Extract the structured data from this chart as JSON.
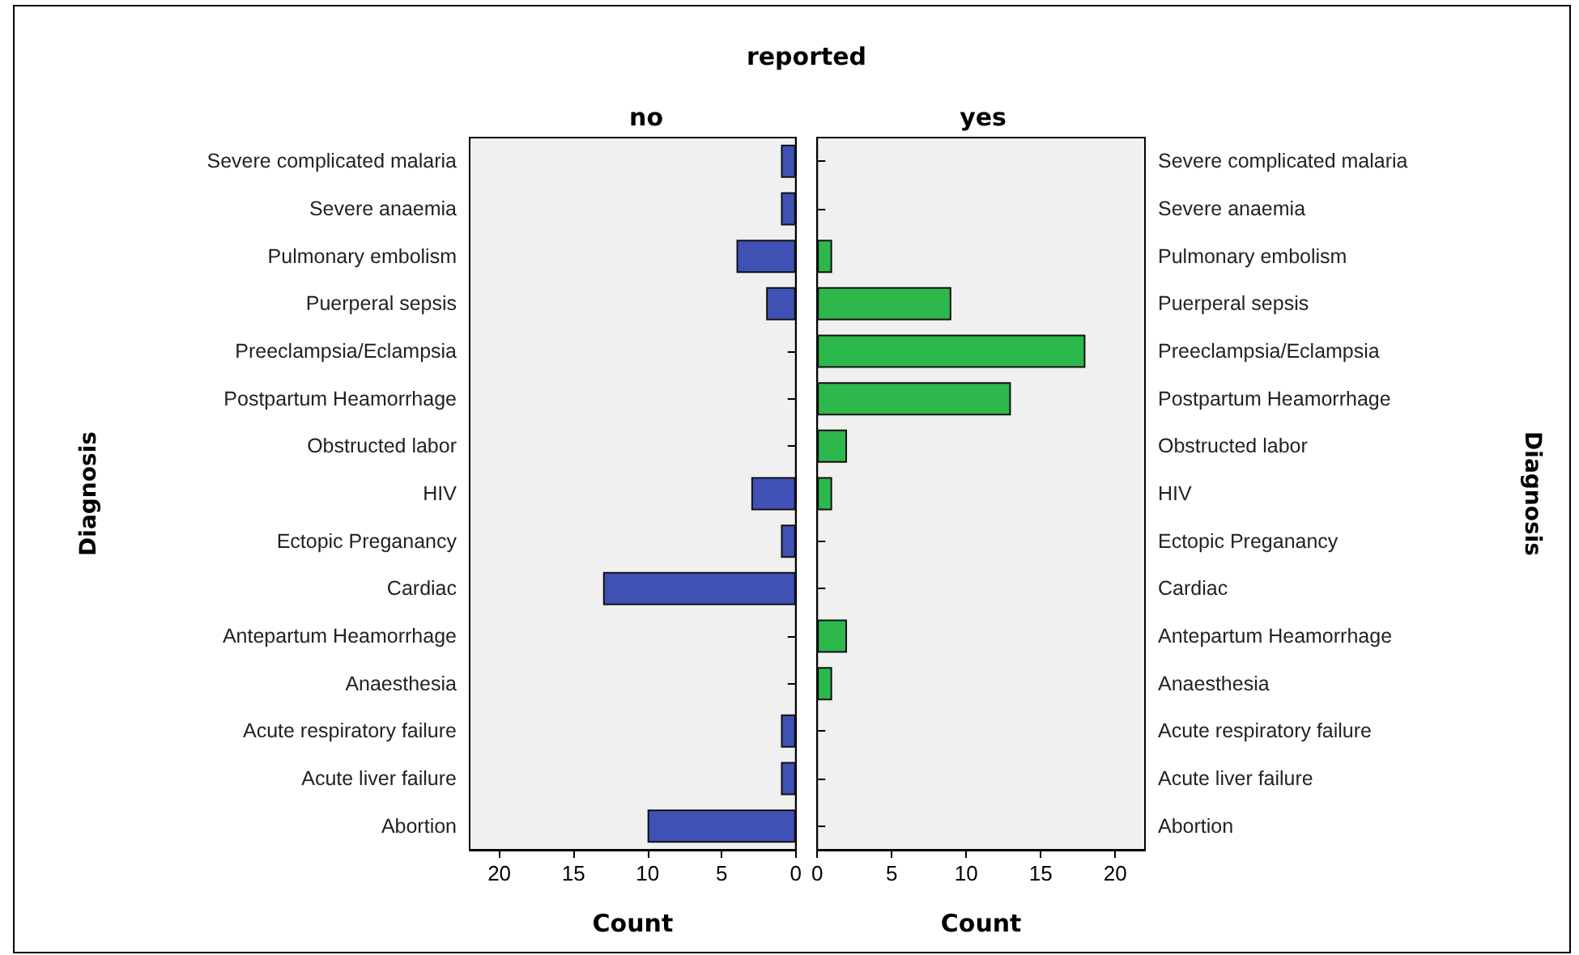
{
  "chart_data": [
    {
      "type": "bar",
      "orientation": "horizontal",
      "title": "no",
      "xlabel": "Count",
      "ylabel": "Diagnosis",
      "annotations": [
        "reported"
      ],
      "categories": [
        "Severe complicated malaria",
        "Severe anaemia",
        "Pulmonary embolism",
        "Puerperal sepsis",
        "Preeclampsia/Eclampsia",
        "Postpartum Heamorrhage",
        "Obstructed labor",
        "HIV",
        "Ectopic Preganancy",
        "Cardiac",
        "Antepartum Heamorrhage",
        "Anaesthesia",
        "Acute respiratory failure",
        "Acute liver failure",
        "Abortion"
      ],
      "values": [
        1,
        1,
        4,
        2,
        0,
        0,
        0,
        3,
        1,
        13,
        0,
        0,
        1,
        1,
        10
      ],
      "color": "#3f51b5",
      "xlim": [
        22,
        0
      ],
      "xticks": [
        0,
        5,
        10,
        15,
        20
      ],
      "grid": false
    },
    {
      "type": "bar",
      "orientation": "horizontal",
      "title": "yes",
      "xlabel": "Count",
      "ylabel": "Diagnosis",
      "categories": [
        "Severe complicated malaria",
        "Severe anaemia",
        "Pulmonary embolism",
        "Puerperal sepsis",
        "Preeclampsia/Eclampsia",
        "Postpartum Heamorrhage",
        "Obstructed labor",
        "HIV",
        "Ectopic Preganancy",
        "Cardiac",
        "Antepartum Heamorrhage",
        "Anaesthesia",
        "Acute respiratory failure",
        "Acute liver failure",
        "Abortion"
      ],
      "values": [
        0,
        0,
        1,
        9,
        18,
        13,
        2,
        1,
        0,
        0,
        2,
        1,
        0,
        0,
        0
      ],
      "color": "#2db84b",
      "xlim": [
        0,
        22
      ],
      "xticks": [
        0,
        5,
        10,
        15,
        20
      ],
      "grid": false
    }
  ]
}
